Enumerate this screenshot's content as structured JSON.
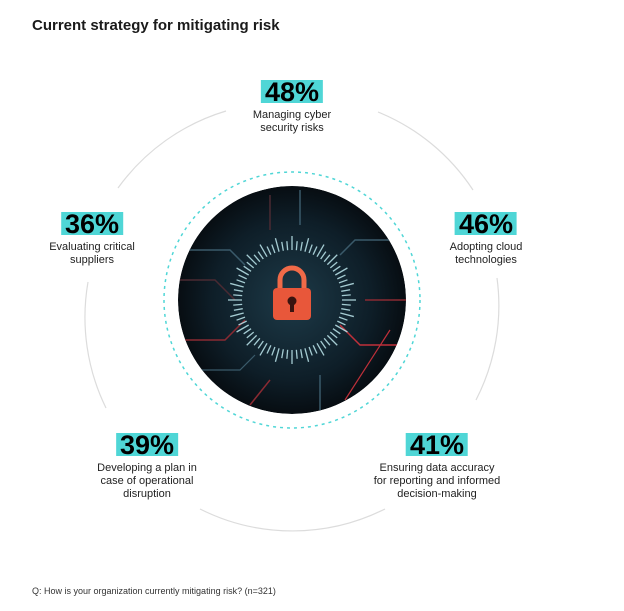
{
  "title": "Current strategy for mitigating risk",
  "footnote": "Q: How is your organization currently mitigating risk? (n=321)",
  "colors": {
    "accent_teal": "#4fd6d6",
    "ring_gray": "#dcdcdc",
    "lock_orange": "#e8573a",
    "center_dark": "#0c1a22"
  },
  "chart_data": {
    "type": "radial-callouts",
    "title": "Current strategy for mitigating risk",
    "unit": "%",
    "items": [
      {
        "label_lines": [
          "Managing cyber",
          "security risks"
        ],
        "value": 48,
        "display": "48%"
      },
      {
        "label_lines": [
          "Adopting cloud",
          "technologies"
        ],
        "value": 46,
        "display": "46%"
      },
      {
        "label_lines": [
          "Ensuring data accuracy",
          "for reporting and informed",
          "decision-making"
        ],
        "value": 41,
        "display": "41%"
      },
      {
        "label_lines": [
          "Developing a plan in",
          "case of operational",
          "disruption"
        ],
        "value": 39,
        "display": "39%"
      },
      {
        "label_lines": [
          "Evaluating critical",
          "suppliers"
        ],
        "value": 36,
        "display": "36%"
      }
    ]
  }
}
